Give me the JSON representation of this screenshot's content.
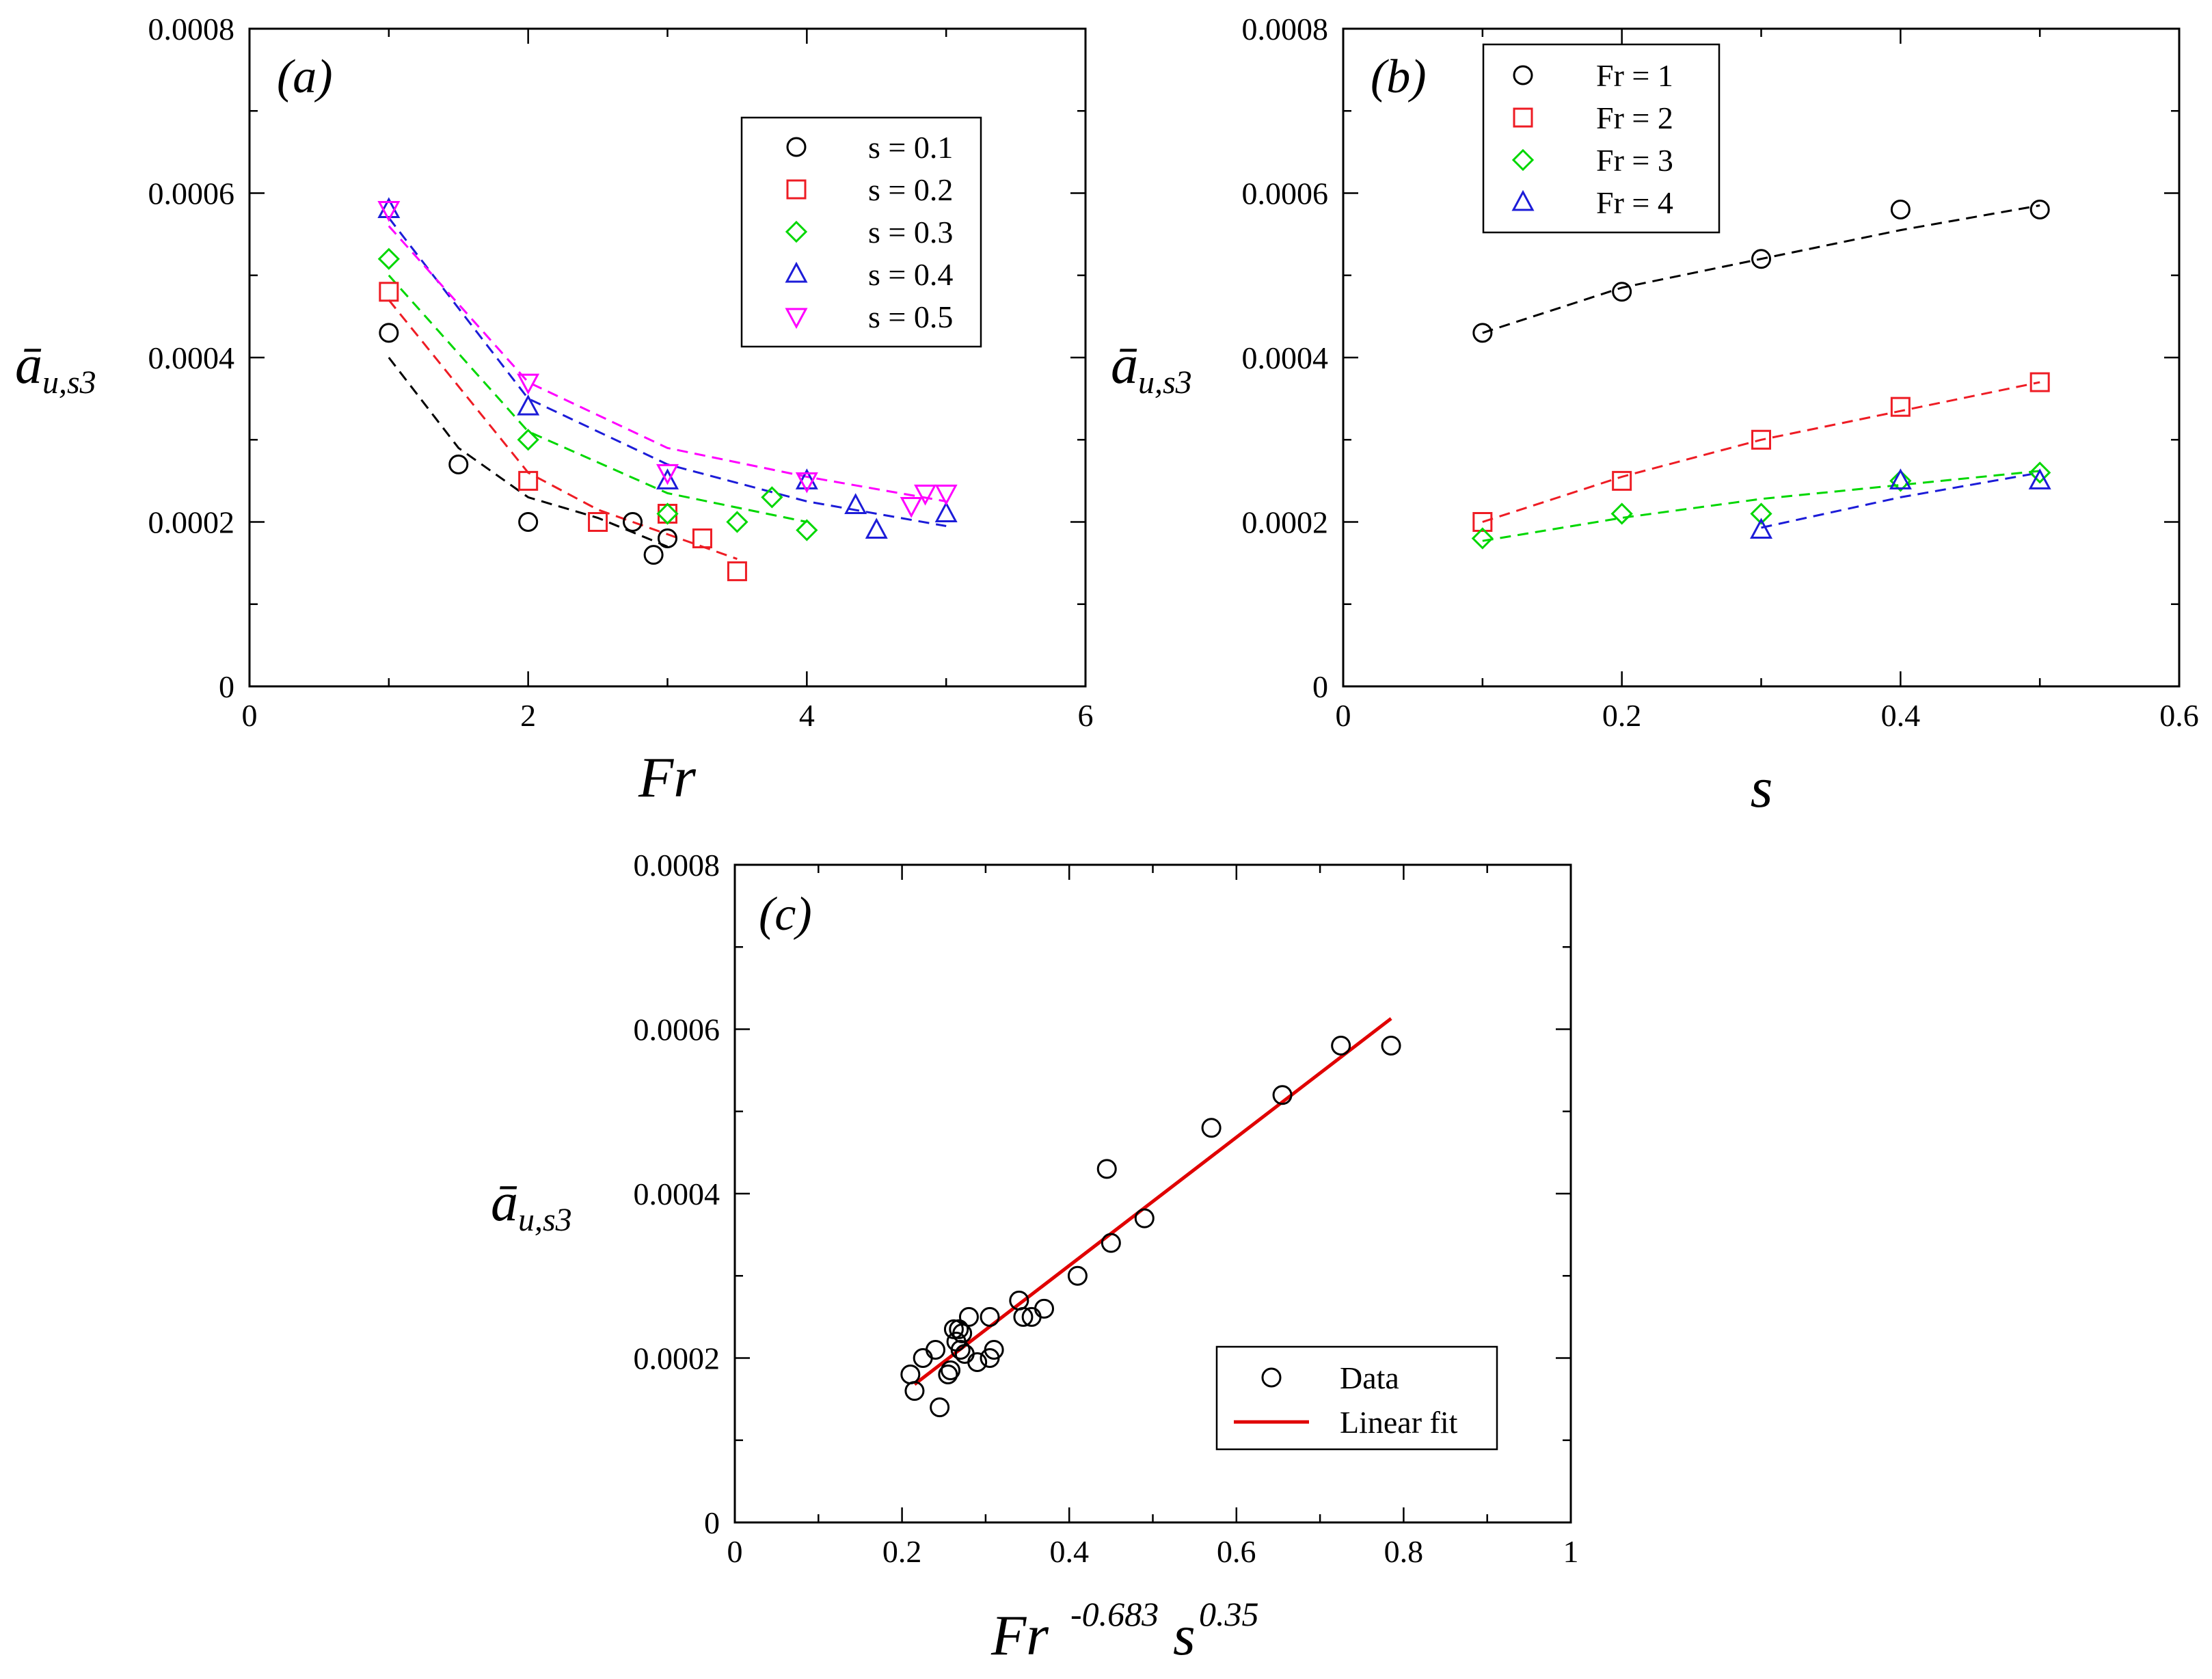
{
  "colors": {
    "s01": "#000000",
    "s02": "#ee1c24",
    "s03": "#00d700",
    "s04": "#1c1cd8",
    "s05": "#ff00ff",
    "fit": "#e00000"
  },
  "chart_data": [
    {
      "id": "a",
      "type": "scatter",
      "panel_label": "(a)",
      "xlabel": "Fr",
      "ylabel": "ā",
      "ylabel_sub": "u,s3",
      "xlim": [
        0,
        6
      ],
      "ylim": [
        0,
        0.0008
      ],
      "xticks": [
        0,
        2,
        4,
        6
      ],
      "yticks": [
        0,
        0.0002,
        0.0004,
        0.0006,
        0.0008
      ],
      "xtick_labels": [
        "0",
        "2",
        "4",
        "6"
      ],
      "ytick_labels": [
        "0",
        "0.0002",
        "0.0004",
        "0.0006",
        "0.0008"
      ],
      "legend_position": "top-right",
      "series": [
        {
          "name": "s = 0.1",
          "marker": "circle",
          "color": "#000000",
          "points": [
            [
              1,
              0.00043
            ],
            [
              1.5,
              0.00027
            ],
            [
              2,
              0.0002
            ],
            [
              2.75,
              0.0002
            ],
            [
              2.9,
              0.00016
            ],
            [
              3,
              0.00018
            ]
          ],
          "fit": [
            [
              1,
              0.0004
            ],
            [
              1.5,
              0.00029
            ],
            [
              2,
              0.00023
            ],
            [
              2.5,
              0.000205
            ],
            [
              3,
              0.00017
            ]
          ]
        },
        {
          "name": "s = 0.2",
          "marker": "square",
          "color": "#ee1c24",
          "points": [
            [
              1,
              0.00048
            ],
            [
              2,
              0.00025
            ],
            [
              2.5,
              0.0002
            ],
            [
              3,
              0.00021
            ],
            [
              3.25,
              0.00018
            ],
            [
              3.5,
              0.00014
            ]
          ],
          "fit": [
            [
              1,
              0.00047
            ],
            [
              2,
              0.00026
            ],
            [
              2.5,
              0.000215
            ],
            [
              3,
              0.000185
            ],
            [
              3.5,
              0.000155
            ]
          ]
        },
        {
          "name": "s = 0.3",
          "marker": "diamond",
          "color": "#00d700",
          "points": [
            [
              1,
              0.00052
            ],
            [
              2,
              0.0003
            ],
            [
              3,
              0.00021
            ],
            [
              3.5,
              0.0002
            ],
            [
              3.75,
              0.00023
            ],
            [
              4,
              0.00019
            ]
          ],
          "fit": [
            [
              1,
              0.0005
            ],
            [
              2,
              0.00031
            ],
            [
              3,
              0.000235
            ],
            [
              4,
              0.0002
            ]
          ]
        },
        {
          "name": "s = 0.4",
          "marker": "triangle-up",
          "color": "#1c1cd8",
          "points": [
            [
              1,
              0.00058
            ],
            [
              2,
              0.00034
            ],
            [
              3,
              0.00025
            ],
            [
              4,
              0.00025
            ],
            [
              4.35,
              0.00022
            ],
            [
              4.5,
              0.00019
            ],
            [
              5,
              0.00021
            ]
          ],
          "fit": [
            [
              1,
              0.00057
            ],
            [
              2,
              0.00035
            ],
            [
              3,
              0.00027
            ],
            [
              4,
              0.000225
            ],
            [
              5,
              0.000195
            ]
          ]
        },
        {
          "name": "s = 0.5",
          "marker": "triangle-down",
          "color": "#ff00ff",
          "points": [
            [
              1,
              0.00058
            ],
            [
              2,
              0.00037
            ],
            [
              3,
              0.00026
            ],
            [
              4,
              0.00025
            ],
            [
              4.75,
              0.00022
            ],
            [
              4.85,
              0.000235
            ],
            [
              5,
              0.000235
            ]
          ],
          "fit": [
            [
              1,
              0.00056
            ],
            [
              2,
              0.00037
            ],
            [
              3,
              0.00029
            ],
            [
              4,
              0.000255
            ],
            [
              5,
              0.000225
            ]
          ]
        }
      ]
    },
    {
      "id": "b",
      "type": "scatter",
      "panel_label": "(b)",
      "xlabel": "s",
      "ylabel": "ā",
      "ylabel_sub": "u,s3",
      "xlim": [
        0,
        0.6
      ],
      "ylim": [
        0,
        0.0008
      ],
      "xticks": [
        0,
        0.2,
        0.4,
        0.6
      ],
      "yticks": [
        0,
        0.0002,
        0.0004,
        0.0006,
        0.0008
      ],
      "xtick_labels": [
        "0",
        "0.2",
        "0.4",
        "0.6"
      ],
      "ytick_labels": [
        "0",
        "0.0002",
        "0.0004",
        "0.0006",
        "0.0008"
      ],
      "legend_position": "top-left",
      "series": [
        {
          "name": "Fr = 1",
          "marker": "circle",
          "color": "#000000",
          "points": [
            [
              0.1,
              0.00043
            ],
            [
              0.2,
              0.00048
            ],
            [
              0.3,
              0.00052
            ],
            [
              0.4,
              0.00058
            ],
            [
              0.5,
              0.00058
            ]
          ],
          "fit": [
            [
              0.1,
              0.00043
            ],
            [
              0.2,
              0.000485
            ],
            [
              0.3,
              0.00052
            ],
            [
              0.4,
              0.000555
            ],
            [
              0.5,
              0.000585
            ]
          ]
        },
        {
          "name": "Fr = 2",
          "marker": "square",
          "color": "#ee1c24",
          "points": [
            [
              0.1,
              0.0002
            ],
            [
              0.2,
              0.00025
            ],
            [
              0.3,
              0.0003
            ],
            [
              0.4,
              0.00034
            ],
            [
              0.5,
              0.00037
            ]
          ],
          "fit": [
            [
              0.1,
              0.0002
            ],
            [
              0.2,
              0.000255
            ],
            [
              0.3,
              0.0003
            ],
            [
              0.4,
              0.000335
            ],
            [
              0.5,
              0.00037
            ]
          ]
        },
        {
          "name": "Fr = 3",
          "marker": "diamond",
          "color": "#00d700",
          "points": [
            [
              0.1,
              0.00018
            ],
            [
              0.2,
              0.00021
            ],
            [
              0.3,
              0.00021
            ],
            [
              0.4,
              0.00025
            ],
            [
              0.5,
              0.00026
            ]
          ],
          "fit": [
            [
              0.1,
              0.000177
            ],
            [
              0.2,
              0.000205
            ],
            [
              0.3,
              0.000228
            ],
            [
              0.4,
              0.000245
            ],
            [
              0.5,
              0.000262
            ]
          ]
        },
        {
          "name": "Fr = 4",
          "marker": "triangle-up",
          "color": "#1c1cd8",
          "points": [
            [
              0.3,
              0.00019
            ],
            [
              0.4,
              0.00025
            ],
            [
              0.5,
              0.00025
            ]
          ],
          "fit": [
            [
              0.3,
              0.000193
            ],
            [
              0.4,
              0.00023
            ],
            [
              0.5,
              0.00026
            ]
          ]
        }
      ]
    },
    {
      "id": "c",
      "type": "scatter",
      "panel_label": "(c)",
      "xlabel": "Fr",
      "xlabel_sup1": "-0.683",
      "xlabel_mid": "s",
      "xlabel_sup2": "0.35",
      "ylabel": "ā",
      "ylabel_sub": "u,s3",
      "xlim": [
        0,
        1
      ],
      "ylim": [
        0,
        0.0008
      ],
      "xticks": [
        0,
        0.2,
        0.4,
        0.6,
        0.8,
        1
      ],
      "yticks": [
        0,
        0.0002,
        0.0004,
        0.0006,
        0.0008
      ],
      "xtick_labels": [
        "0",
        "0.2",
        "0.4",
        "0.6",
        "0.8",
        "1"
      ],
      "ytick_labels": [
        "0",
        "0.0002",
        "0.0004",
        "0.0006",
        "0.0008"
      ],
      "legend_position": "bottom-right",
      "series": [
        {
          "name": "Data",
          "marker": "circle",
          "color": "#000000",
          "points": [
            [
              0.21,
              0.00018
            ],
            [
              0.215,
              0.00016
            ],
            [
              0.225,
              0.0002
            ],
            [
              0.24,
              0.00021
            ],
            [
              0.245,
              0.00014
            ],
            [
              0.255,
              0.00018
            ],
            [
              0.258,
              0.000185
            ],
            [
              0.262,
              0.000235
            ],
            [
              0.265,
              0.00022
            ],
            [
              0.268,
              0.000235
            ],
            [
              0.27,
              0.00021
            ],
            [
              0.272,
              0.00023
            ],
            [
              0.275,
              0.000205
            ],
            [
              0.28,
              0.00025
            ],
            [
              0.29,
              0.000195
            ],
            [
              0.305,
              0.00025
            ],
            [
              0.305,
              0.0002
            ],
            [
              0.31,
              0.00021
            ],
            [
              0.34,
              0.00027
            ],
            [
              0.345,
              0.00025
            ],
            [
              0.355,
              0.00025
            ],
            [
              0.37,
              0.00026
            ],
            [
              0.41,
              0.0003
            ],
            [
              0.445,
              0.00043
            ],
            [
              0.45,
              0.00034
            ],
            [
              0.49,
              0.00037
            ],
            [
              0.57,
              0.00048
            ],
            [
              0.655,
              0.00052
            ],
            [
              0.725,
              0.00058
            ],
            [
              0.785,
              0.00058
            ]
          ]
        },
        {
          "name": "Linear fit",
          "marker": "line",
          "color": "#e00000",
          "points": [
            [
              0.215,
              0.000168
            ],
            [
              0.785,
              0.000613
            ]
          ]
        }
      ]
    }
  ]
}
